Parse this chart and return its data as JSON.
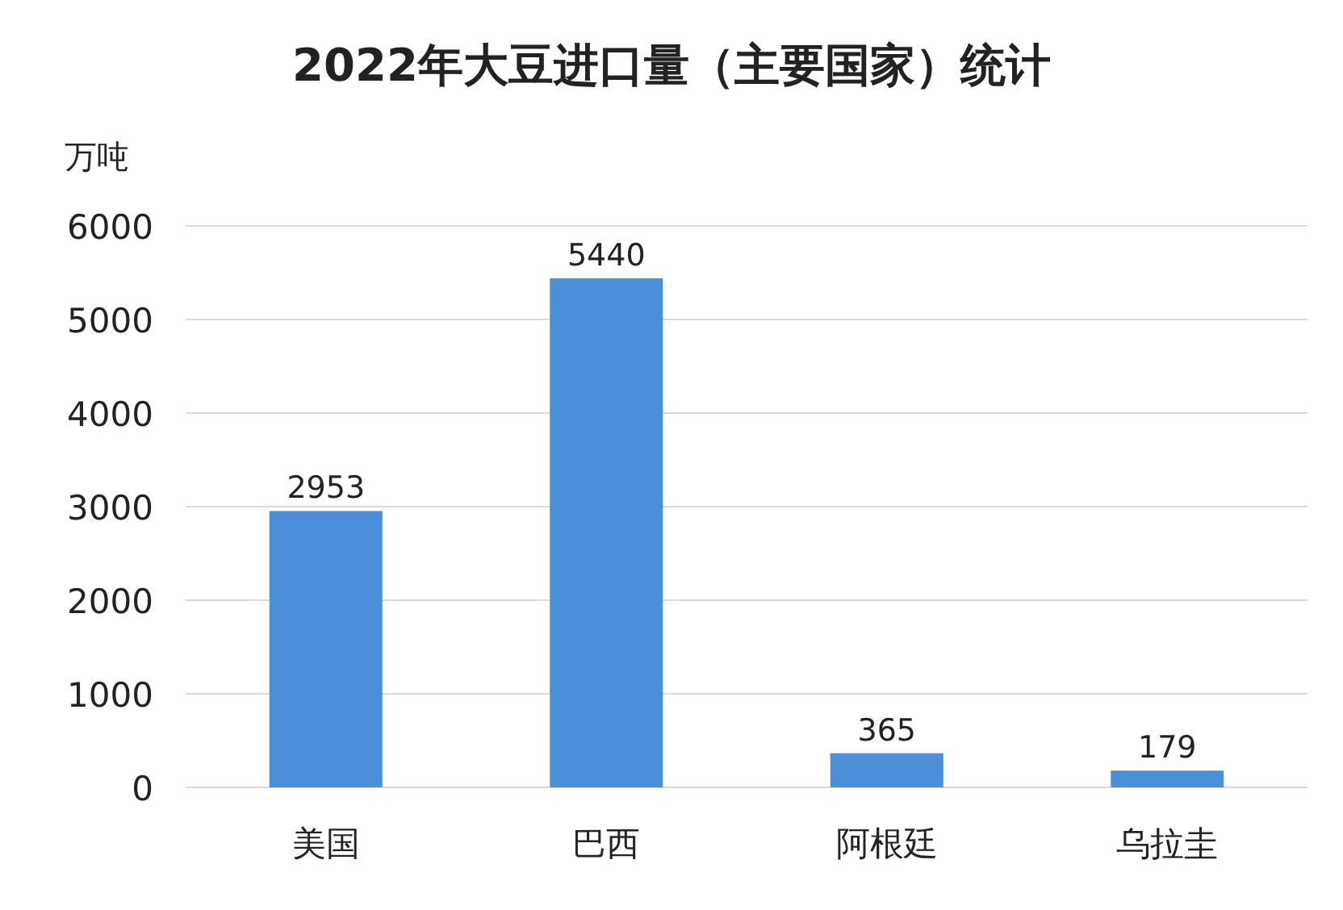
{
  "chart_data": {
    "type": "bar",
    "title": "2022年大豆进口量（主要国家）统计",
    "ylabel": "万吨",
    "categories": [
      "美国",
      "巴西",
      "阿根廷",
      "乌拉圭"
    ],
    "values": [
      2953,
      5440,
      365,
      179
    ],
    "color": "#4a8fd8",
    "ylim": [
      0,
      6000
    ],
    "yticks": [
      0,
      1000,
      2000,
      3000,
      4000,
      5000,
      6000
    ],
    "grid": "y",
    "data_labels": true
  }
}
